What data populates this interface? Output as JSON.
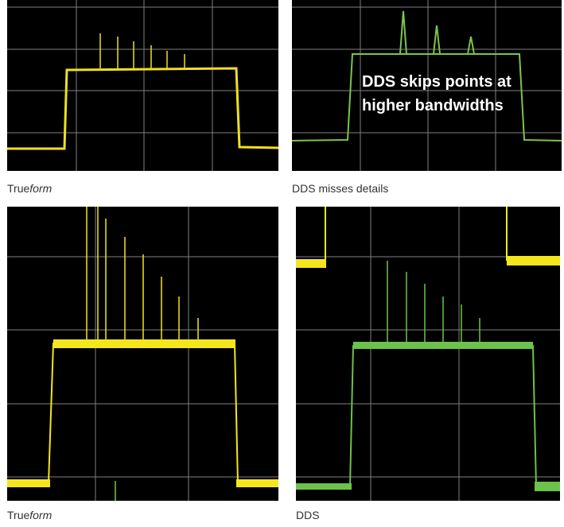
{
  "panels": {
    "top_left": {
      "trace_color": "#f0e020"
    },
    "top_right": {
      "trace_color": "#7bc54a",
      "overlay_line1": "DDS skips points at",
      "overlay_line2": "higher bandwidths"
    },
    "bottom_left": {
      "trace_color": "#f5e61c",
      "secondary_color": "#7bc54a"
    },
    "bottom_right": {
      "trace_color": "#6cc24a",
      "secondary_color": "#f5e61c"
    }
  },
  "captions": {
    "top_left_prefix": "True",
    "top_left_suffix": "form",
    "top_right": "DDS misses details",
    "bottom_left_prefix": "True",
    "bottom_left_suffix": "form",
    "bottom_right": "DDS"
  },
  "colors": {
    "grid": "#7f7f7f",
    "background": "#000000"
  }
}
